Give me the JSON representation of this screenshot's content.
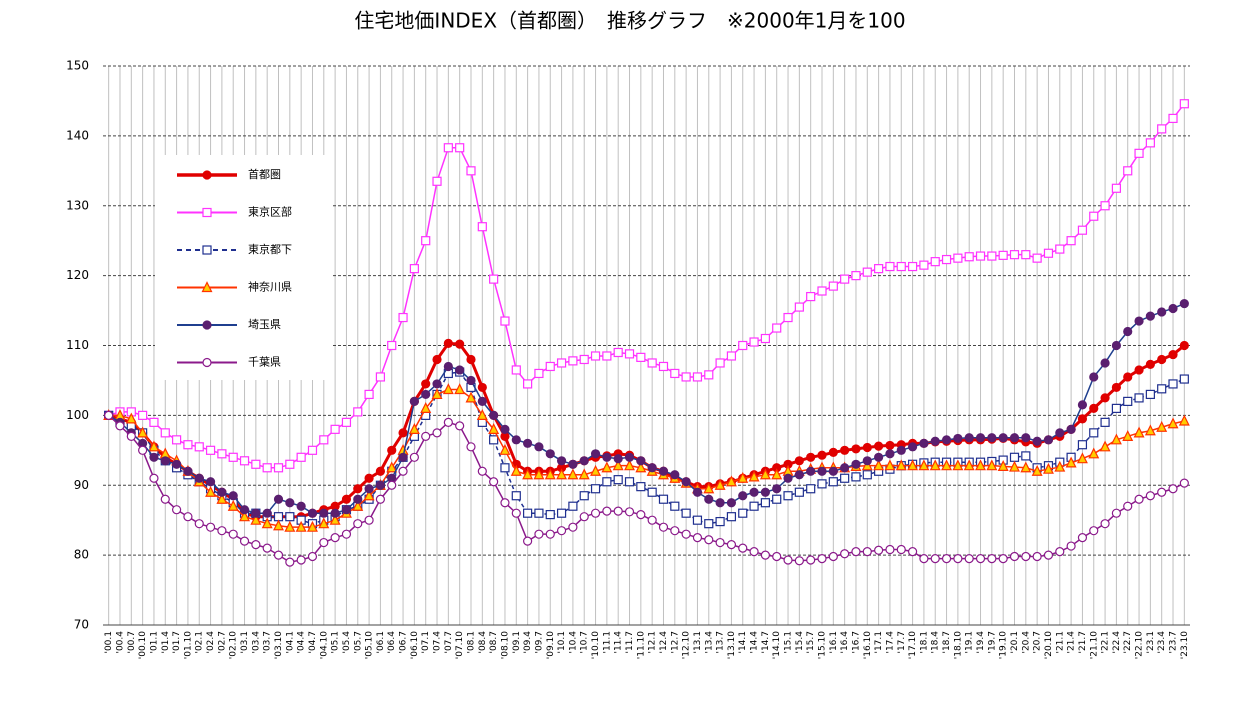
{
  "chart_data": {
    "type": "line",
    "title": "住宅地価INDEX（首都圏）　推移グラフ　※2000年1月を100",
    "categories": [
      "'00.1",
      "'00.4",
      "'00.7",
      "'00.10",
      "'01.1",
      "'01.4",
      "'01.7",
      "'01.10",
      "'02.1",
      "'02.4",
      "'02.7",
      "'02.10",
      "'03.1",
      "'03.4",
      "'03.7",
      "'03.10",
      "'04.1",
      "'04.4",
      "'04.7",
      "'04.10",
      "'05.1",
      "'05.4",
      "'05.7",
      "'05.10",
      "'06.1",
      "'06.4",
      "'06.7",
      "'06.10",
      "'07.1",
      "'07.4",
      "'07.7",
      "'07.10",
      "'08.1",
      "'08.4",
      "'08.7",
      "'08.10",
      "'09.1",
      "'09.4",
      "'09.7",
      "'09.10",
      "'10.1",
      "'10.4",
      "'10.7",
      "'10.10",
      "'11.1",
      "'11.4",
      "'11.7",
      "'11.10",
      "'12.1",
      "'12.4",
      "'12.7",
      "'12.10",
      "'13.1",
      "'13.4",
      "'13.7",
      "'13.10",
      "'14.1",
      "'14.4",
      "'14.7",
      "'14.10",
      "'15.1",
      "'15.4",
      "'15.7",
      "'15.10",
      "'16.1",
      "'16.4",
      "'16.7",
      "'16.10",
      "'17.1",
      "'17.4",
      "'17.7",
      "'17.10",
      "'18.1",
      "'18.4",
      "'18.7",
      "'18.10",
      "'19.1",
      "'19.4",
      "'19.7",
      "'19.10",
      "'20.1",
      "'20.4",
      "'20.7",
      "'20.10",
      "'21.1",
      "'21.4",
      "'21.7",
      "'21.10",
      "'22.1",
      "'22.4",
      "'22.7",
      "'22.10",
      "'23.1",
      "'23.4",
      "'23.7",
      "'23.10"
    ],
    "series": [
      {
        "name": "首都圏",
        "color": "#e00000",
        "marker": "circle",
        "marker_color": "#e00000",
        "marker_fill": "#e00000",
        "width": 3,
        "dash": false,
        "values": [
          100,
          99.5,
          99,
          97.5,
          95.5,
          94,
          93,
          92,
          91,
          90,
          89,
          88,
          86,
          85.5,
          85.5,
          85.5,
          85.5,
          85.5,
          86,
          86.5,
          87,
          88,
          89.5,
          91,
          92,
          95,
          97.5,
          102,
          104.5,
          108,
          110.3,
          110.2,
          108,
          104,
          100,
          97,
          93,
          92,
          92,
          92,
          92.5,
          93,
          93.5,
          94,
          94.2,
          94.5,
          94.3,
          93.5,
          92.5,
          92,
          91,
          90.5,
          89.8,
          89.8,
          90.2,
          90.5,
          91,
          91.5,
          92,
          92.5,
          93,
          93.5,
          94,
          94.3,
          94.7,
          95,
          95.2,
          95.4,
          95.6,
          95.7,
          95.8,
          96,
          96,
          96.2,
          96.3,
          96.4,
          96.5,
          96.5,
          96.6,
          96.7,
          96.5,
          96.2,
          96,
          96.5,
          97,
          98,
          99.5,
          101,
          102.5,
          104,
          105.5,
          106.5,
          107.3,
          108,
          108.7,
          110
        ]
      },
      {
        "name": "東京区部",
        "color": "#ff33ff",
        "marker": "square",
        "marker_color": "#ff33ff",
        "marker_fill": "#ffffff",
        "width": 1.5,
        "dash": false,
        "values": [
          100,
          100.5,
          100.5,
          100,
          99,
          97.5,
          96.5,
          95.8,
          95.5,
          95,
          94.5,
          94,
          93.5,
          93,
          92.5,
          92.5,
          93,
          94,
          95,
          96.5,
          98,
          99,
          100.5,
          103,
          105.5,
          110,
          114,
          121,
          125,
          133.5,
          138.3,
          138.3,
          135,
          127,
          119.5,
          113.5,
          106.5,
          104.5,
          106,
          107,
          107.5,
          107.8,
          108,
          108.5,
          108.5,
          109,
          108.8,
          108.3,
          107.5,
          107,
          106,
          105.5,
          105.5,
          105.8,
          107.5,
          108.5,
          110,
          110.5,
          111,
          112.5,
          114,
          115.5,
          117,
          117.8,
          118.5,
          119.5,
          120,
          120.5,
          121,
          121.3,
          121.3,
          121.3,
          121.5,
          122,
          122.3,
          122.5,
          122.7,
          122.8,
          122.8,
          122.9,
          123,
          123,
          122.5,
          123.2,
          123.8,
          125,
          126.5,
          128.5,
          130,
          132.5,
          135,
          137.5,
          139,
          141,
          142.5,
          144.6
        ]
      },
      {
        "name": "東京都下",
        "color": "#1f2f8f",
        "marker": "square",
        "marker_color": "#1f2f8f",
        "marker_fill": "#ffffff",
        "width": 1.5,
        "dash": true,
        "values": [
          100,
          99,
          98.5,
          97.5,
          95,
          93.5,
          92.5,
          91.5,
          90.5,
          89.5,
          88.5,
          87.5,
          86,
          86,
          85.5,
          85.5,
          85.5,
          85,
          84.5,
          85,
          85.5,
          86.5,
          87,
          88,
          90,
          92,
          94,
          97,
          100,
          103,
          106,
          106.2,
          104,
          99,
          96.5,
          92.5,
          88.5,
          86,
          86,
          85.8,
          86,
          87,
          88.5,
          89.5,
          90.5,
          90.8,
          90.5,
          89.8,
          89,
          88,
          87,
          86,
          85,
          84.5,
          84.8,
          85.5,
          86,
          87,
          87.5,
          88,
          88.5,
          89,
          89.5,
          90.2,
          90.5,
          91,
          91.2,
          91.5,
          92,
          92.3,
          92.8,
          93,
          93.2,
          93.3,
          93.3,
          93.3,
          93.3,
          93.3,
          93.4,
          93.6,
          94,
          94.2,
          92.5,
          92.8,
          93.3,
          94,
          95.8,
          97.5,
          99,
          101,
          102,
          102.5,
          103,
          103.8,
          104.5,
          105.2
        ]
      },
      {
        "name": "神奈川県",
        "color": "#ff3300",
        "marker": "triangle",
        "marker_color": "#ff3300",
        "marker_fill": "#ffcc00",
        "width": 1.5,
        "dash": false,
        "values": [
          100,
          100,
          99.5,
          97.5,
          95.5,
          94.5,
          93.5,
          92,
          90.5,
          89,
          88,
          87,
          85.5,
          85,
          84.5,
          84.2,
          84,
          84,
          84,
          84.5,
          85,
          86,
          87,
          88.5,
          90,
          92.5,
          95,
          98,
          101,
          103,
          103.7,
          103.7,
          102.5,
          100,
          98,
          95,
          92,
          91.5,
          91.5,
          91.5,
          91.5,
          91.5,
          91.5,
          92,
          92.5,
          92.8,
          92.8,
          92.5,
          92,
          91.5,
          91,
          90.3,
          89.5,
          89.5,
          90,
          90.5,
          91,
          91.2,
          91.5,
          91.5,
          92,
          92,
          92.3,
          92.5,
          92.5,
          92.5,
          92.7,
          92.8,
          92.8,
          92.8,
          92.8,
          92.8,
          92.8,
          92.8,
          92.8,
          92.8,
          92.8,
          92.8,
          92.8,
          92.7,
          92.6,
          92.5,
          92,
          92.3,
          92.6,
          93.2,
          93.8,
          94.5,
          95.5,
          96.5,
          97,
          97.5,
          97.8,
          98.3,
          98.8,
          99.2
        ]
      },
      {
        "name": "埼玉県",
        "color": "#1f3f8f",
        "marker": "circle",
        "marker_color": "#5a1f6f",
        "marker_fill": "#5a1f6f",
        "width": 1.5,
        "dash": false,
        "values": [
          100,
          99,
          97.5,
          96,
          94,
          93.5,
          93,
          92,
          91,
          90.5,
          89,
          88.5,
          86.5,
          86,
          86,
          88,
          87.5,
          87,
          86,
          86,
          86,
          86.5,
          88,
          89.5,
          90,
          91,
          94,
          102,
          103,
          104.5,
          107,
          106.5,
          105,
          102,
          100,
          98,
          96.5,
          96,
          95.5,
          94.5,
          93.5,
          93,
          93.5,
          94.5,
          94,
          93.8,
          94,
          93.5,
          92.5,
          92,
          91.5,
          90.5,
          89,
          88,
          87.5,
          87.5,
          88.5,
          89,
          89,
          89.5,
          91,
          91.5,
          92,
          92,
          92,
          92.5,
          93,
          93.5,
          94,
          94.5,
          95,
          95.5,
          96,
          96.3,
          96.5,
          96.7,
          96.8,
          96.8,
          96.8,
          96.8,
          96.8,
          96.8,
          96.3,
          96.5,
          97.5,
          98,
          101.5,
          105.5,
          107.5,
          110,
          112,
          113.5,
          114.2,
          114.8,
          115.3,
          116
        ]
      },
      {
        "name": "千葉県",
        "color": "#8b1a8b",
        "marker": "circle",
        "marker_color": "#8b1a8b",
        "marker_fill": "#ffffff",
        "width": 1.5,
        "dash": false,
        "values": [
          100,
          98.5,
          97,
          95,
          91,
          88,
          86.5,
          85.5,
          84.5,
          84,
          83.5,
          83,
          82,
          81.5,
          81,
          80,
          79,
          79.3,
          79.8,
          81.8,
          82.5,
          83,
          84.5,
          85,
          88,
          90,
          92,
          94,
          97,
          97.5,
          99,
          98.5,
          95.5,
          92,
          90.5,
          87.5,
          86,
          82,
          83,
          83,
          83.5,
          84,
          85.5,
          86,
          86.3,
          86.3,
          86.2,
          85.8,
          85,
          84,
          83.5,
          83,
          82.5,
          82.2,
          81.8,
          81.5,
          81,
          80.5,
          80,
          79.8,
          79.3,
          79.2,
          79.3,
          79.5,
          79.8,
          80.2,
          80.5,
          80.5,
          80.7,
          80.8,
          80.8,
          80.5,
          79.5,
          79.5,
          79.5,
          79.5,
          79.5,
          79.5,
          79.5,
          79.5,
          79.8,
          79.8,
          79.8,
          80,
          80.5,
          81.3,
          82.5,
          83.5,
          84.5,
          86,
          87,
          88,
          88.5,
          89,
          89.5,
          90.3
        ]
      }
    ],
    "ylim": [
      70,
      150
    ],
    "yticks": [
      70,
      80,
      90,
      100,
      110,
      120,
      130,
      140,
      150
    ],
    "grid": true,
    "legend": "upper left"
  }
}
